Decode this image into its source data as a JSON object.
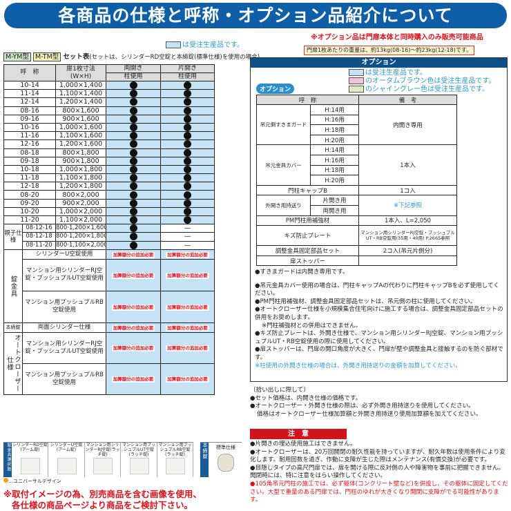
{
  "title": "各商品の仕様と呼称・オプション品紹介について",
  "colors": {
    "banner": "#0e5ea8",
    "made_to_order": "#c6e3f6",
    "autumn_brown": "#f5c3d6",
    "shining_gray": "#e2ecc0",
    "warning": "#e0101a"
  },
  "legend_left": "は受注生産品です。",
  "set_table": {
    "badges": [
      "M-YM型",
      "M-TM型"
    ],
    "caption": "セット表",
    "caption_note": "(セットは、シリンダーRD空錠と本締錠(標準仕様)を使用の場合)",
    "headers": {
      "name": "呼　称",
      "size": "扉1枚寸法\n(W×H)",
      "double": "両開き",
      "single": "片開き",
      "post_double": "柱使用",
      "post_single": "柱使用"
    },
    "rows": [
      {
        "name": "10-14",
        "size": "1,000×1,400",
        "double": "●",
        "single": "●"
      },
      {
        "name": "11-14",
        "size": "1,100×1,400",
        "double": "●",
        "single": "●"
      },
      {
        "name": "12-14",
        "size": "1,200×1,400",
        "double": "●",
        "single": "●"
      },
      {
        "name": "08-16",
        "size": "800×1,600",
        "double": "●",
        "single": "●"
      },
      {
        "name": "09-16",
        "size": "900×1,600",
        "double": "●",
        "single": "●"
      },
      {
        "name": "10-16",
        "size": "1,000×1,600",
        "double": "●",
        "single": "●"
      },
      {
        "name": "11-16",
        "size": "1,100×1,600",
        "double": "●",
        "single": "●"
      },
      {
        "name": "12-16",
        "size": "1,200×1,600",
        "double": "●",
        "single": "●"
      },
      {
        "name": "08-18",
        "size": "800×1,800",
        "double": "●",
        "single": "●"
      },
      {
        "name": "09-18",
        "size": "900×1,800",
        "double": "●",
        "single": "●"
      },
      {
        "name": "10-18",
        "size": "1,000×1,800",
        "double": "●",
        "single": "●"
      },
      {
        "name": "11-18",
        "size": "1,100×1,800",
        "double": "●",
        "single": "●"
      },
      {
        "name": "12-18",
        "size": "1,200×1,800",
        "double": "●",
        "single": "●"
      },
      {
        "name": "08-20",
        "size": "800×2,000",
        "double": "●",
        "single": "●"
      },
      {
        "name": "09-20",
        "size": "900×2,000",
        "double": "●",
        "single": "●"
      },
      {
        "name": "10-20",
        "size": "1,000×2,000",
        "double": "●",
        "single": "●"
      },
      {
        "name": "11-20",
        "size": "1,100×2,000",
        "double": "●",
        "single": "●"
      }
    ],
    "oyako_label": "親子仕様",
    "oyako_rows": [
      {
        "name": "08·12-16",
        "size": "800·1,200×1,600",
        "double": "●",
        "single": "—"
      },
      {
        "name": "08·12-18",
        "size": "800·1,200×1,800",
        "double": "●",
        "single": "—"
      },
      {
        "name": "08·11-20",
        "size": "800·1,100×2,000",
        "double": "●",
        "single": "—"
      }
    ],
    "add_required": "加算額分の追加必要",
    "lock_label": "錠金具",
    "lock_rows": [
      "シリンダーU空錠使用",
      "マンション用シリンダーRJ空錠・プッシュプルUT空錠使用",
      "マンション用プッシュプルRB空錠使用"
    ],
    "deadbolt_label": "本締錠",
    "deadbolt_row": "両面シリンダー仕様",
    "closer_label": "オートクローザー仕様",
    "closer_rows": [
      "マンション用シリンダーRJ空錠・プッシュプルUT空錠使用",
      "マンション用プッシュプルRB空錠使用"
    ]
  },
  "handles": {
    "side_label": "錠金具選択肢",
    "items": [
      "シリンダーRD空錠(アーム錠)",
      "シリンダーU空錠(アーム錠)",
      "マンション用シリンダーRJ空錠(ラッチ錠)",
      "マンション用プッシュプルUT空錠(ラッチ錠)",
      "マンション用プッシュプルRB空錠(ラッチ錠)"
    ],
    "ud_note": "…ユニバーサルデザイン",
    "deadbolt_side": "本締錠",
    "deadbolt_item": "標準仕様"
  },
  "image_note": [
    "※取付イメージの為、別売商品を含む画像を使用、",
    "各仕様の商品ページより商品をご検討下さい。"
  ],
  "option_notice": "※オプション品は門扉本体と同時購入のみ販売可能商品",
  "weight_note": "門扉1枚あたりの重量は、約13kg(08-16)～約23kg(12-18)です。",
  "options": {
    "header": "オプション",
    "badge": "オプション",
    "legend": [
      "は受注生産品です。",
      "のオータムブラウン色は受注生産品です。",
      "のシャイングレー色は受注生産品です。"
    ],
    "col_name": "呼　称",
    "col_note": "備　考",
    "rows": [
      {
        "name": "吊元側すきまガード",
        "subs": [
          "H:14用",
          "H:16用",
          "H:18用",
          "H:20用"
        ],
        "note": "内開き専用"
      },
      {
        "name": "吊元金具カバー",
        "subs": [
          "H:14用",
          "H:16用",
          "H:18用",
          "H:20用"
        ],
        "note": "1本入"
      },
      {
        "name": "門柱キャップB",
        "subs": [],
        "note": "1コ入"
      },
      {
        "name": "外開き用持送り",
        "subs": [
          "片開き用",
          "両開き用"
        ],
        "note": "※下記参照"
      },
      {
        "name": "PM門柱用補強材",
        "subs": [],
        "note": "1本入、L=2,050"
      },
      {
        "name": "キズ防止プレート",
        "subs": [],
        "note": "マンション用シリンダーRJ空錠・プッシュプルUT・RB空錠用(35用・40用) P.2665参照"
      },
      {
        "name": "調整金具固定部品セット",
        "subs": [],
        "note": "2コ入(吊元片側分)"
      },
      {
        "name": "扉ストッパー",
        "subs": [],
        "note": ""
      }
    ],
    "notes": [
      "●すきまガードは内開き専用です。",
      "●吊元金具カバー使用の場合は、門柱キャップAの代わりに門柱キャップBを必ず使用してください。",
      "●PM門柱用補強材、調整金具固定部品セットは、吊元側の柱に使用してください。",
      "●オートクローザー仕様を小規模集合住宅向けに施工する場合は、調整金具固定部品セットの併用をお奨めします。",
      "※門柱補強材との併用はできません。",
      "●キズ防止プレートは、外開き仕様で、マンション用シリンダーRJ空錠、マンション用プッシュプルUT・RB空錠使用の際に使用してください。",
      "●扉ストッパーは、門扉の開口角度が大きく、門扉が壁や調整金具と接触するのを防ぐ部材です。"
    ],
    "note_cyan": "※柱使用の外開き仕様の場合は、外開き用持送りの金額を加算してください。"
  },
  "pickup": {
    "heading": "〔拾い出しに際して〕",
    "items": [
      "●セット価格は、内開き仕様の価格です。",
      "●オートクローザー・外開き仕様の際は、必ず外開き用持送りを使用してください。",
      "価格はオートクローザー仕様加算額と外開き用持送り使用加算額を加えてください。"
    ]
  },
  "caution": {
    "header": "注　意",
    "items": [
      "●片開きの埋込使用施工はできません。",
      "●オートクローザーは、20万回開閉の耐久性能を持っていますが、耐久年数は使用条件により変化します。耐用回数を過ぎ、作動に支障が生じた際はメンテナンス(有償交換)が必要です。",
      "●目隠しタイプの高尺門扉では、扉を開ける際に反対側の人や障害物を事前に把握できません。開閉時には、特に注意をはらい操作してください。"
    ],
    "red_item": "●105角吊元門柱の施工では、必ず躯体(コンクリート壁など)を併設し、その躯体に固定してください。大型で重量のある門扉では、門柱のゆれが大きくなり開閉に支障がでる可能性があります。"
  }
}
